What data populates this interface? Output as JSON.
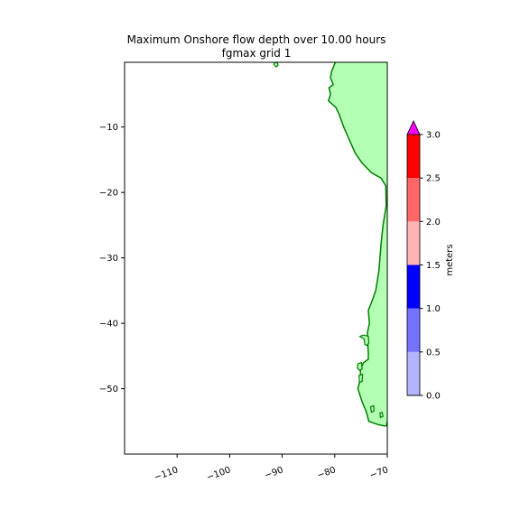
{
  "chart_data": {
    "type": "heatmap",
    "title": "Maximum Onshore flow depth over 10.00 hours",
    "subtitle": "fgmax grid 1",
    "xlabel": "",
    "ylabel": "",
    "xlim": [
      -120,
      -70
    ],
    "ylim": [
      -60,
      -0.1
    ],
    "x_ticks": [
      -110,
      -100,
      -90,
      -80,
      -70
    ],
    "y_ticks": [
      -10,
      -20,
      -30,
      -40,
      -50
    ],
    "x_tick_labels": [
      "−110",
      "−100",
      "−90",
      "−80",
      "−70"
    ],
    "y_tick_labels": [
      "−10",
      "−20",
      "−30",
      "−40",
      "−50"
    ],
    "grid": false,
    "colors": {
      "land": "#b3ffb3",
      "coastline": "#008000"
    },
    "colorbar": {
      "label": "meters",
      "levels": [
        0.0,
        0.5,
        1.0,
        1.5,
        2.0,
        2.5,
        3.0
      ],
      "tick_labels": [
        "0.0",
        "0.5",
        "1.0",
        "1.5",
        "2.0",
        "2.5",
        "3.0"
      ],
      "colors": [
        "#b3b3ff",
        "#7373ff",
        "#0000ff",
        "#ffb3b3",
        "#ff6666",
        "#ff0000"
      ],
      "extend_color": "#ff00ff",
      "extend": "max"
    },
    "coastline": [
      [
        -62.7,
        -0.1
      ],
      [
        -62.7,
        -3.8
      ],
      [
        -62.4,
        -3.8
      ],
      [
        -62.4,
        -9
      ],
      [
        -62.5,
        -20
      ],
      [
        -62.5,
        -30
      ],
      [
        -62.5,
        -40
      ],
      [
        -62.3,
        -40.3
      ],
      [
        -62,
        -40.5
      ],
      [
        -62.4,
        -40.7
      ],
      [
        -63,
        -41
      ],
      [
        -63.1,
        -41.5
      ],
      [
        -62.8,
        -42
      ],
      [
        -63.4,
        -42.3
      ],
      [
        -64.3,
        -42.8
      ],
      [
        -64.7,
        -43.5
      ],
      [
        -65.3,
        -44.5
      ],
      [
        -66.4,
        -45
      ],
      [
        -67.2,
        -46
      ],
      [
        -67.4,
        -47
      ],
      [
        -66.3,
        -48
      ],
      [
        -68.2,
        -49
      ],
      [
        -68.8,
        -50.5
      ],
      [
        -69,
        -51.3
      ],
      [
        -69.3,
        -52
      ],
      [
        -68.5,
        -52.4
      ],
      [
        -68.6,
        -53.5
      ],
      [
        -67.7,
        -54.2
      ],
      [
        -66.7,
        -55
      ],
      [
        -67.8,
        -55.3
      ],
      [
        -69,
        -55.4
      ],
      [
        -70.5,
        -55.7
      ],
      [
        -71.7,
        -55.5
      ],
      [
        -73.5,
        -55
      ],
      [
        -74,
        -53.5
      ],
      [
        -74.8,
        -52
      ],
      [
        -75.6,
        -50
      ],
      [
        -75.1,
        -48.5
      ],
      [
        -75.1,
        -47
      ],
      [
        -74.5,
        -46
      ],
      [
        -73.6,
        -45.5
      ],
      [
        -73.6,
        -44.5
      ],
      [
        -73.7,
        -43.5
      ],
      [
        -73.6,
        -42.5
      ],
      [
        -73.8,
        -41.5
      ],
      [
        -73.4,
        -40
      ],
      [
        -73.6,
        -38
      ],
      [
        -73.1,
        -37
      ],
      [
        -72.2,
        -35
      ],
      [
        -71.6,
        -32
      ],
      [
        -71.4,
        -30
      ],
      [
        -71.2,
        -28
      ],
      [
        -70.8,
        -25
      ],
      [
        -70.2,
        -22
      ],
      [
        -70.3,
        -19
      ],
      [
        -71.2,
        -17.8
      ],
      [
        -73,
        -17
      ],
      [
        -74.8,
        -15.5
      ],
      [
        -76.1,
        -14
      ],
      [
        -77.2,
        -12
      ],
      [
        -78.3,
        -10
      ],
      [
        -79.2,
        -8
      ],
      [
        -79.8,
        -7
      ],
      [
        -81.2,
        -6
      ],
      [
        -80.8,
        -5
      ],
      [
        -81.1,
        -4
      ],
      [
        -80.3,
        -3.5
      ],
      [
        -80.8,
        -2.5
      ],
      [
        -80.6,
        -1.5
      ],
      [
        -79.9,
        -0.1
      ]
    ],
    "islands": [
      [
        [
          -91.4,
          -0.1
        ],
        [
          -91.6,
          -0.4
        ],
        [
          -91.2,
          -0.8
        ],
        [
          -90.8,
          -0.6
        ],
        [
          -90.9,
          -0.2
        ]
      ],
      [
        [
          -75.2,
          -42
        ],
        [
          -74.5,
          -41.8
        ],
        [
          -73.6,
          -42
        ],
        [
          -73.5,
          -43
        ],
        [
          -73.9,
          -43.4
        ],
        [
          -74.3,
          -43.2
        ],
        [
          -74.4,
          -42.4
        ]
      ],
      [
        [
          -75.6,
          -46.2
        ],
        [
          -74.9,
          -46
        ],
        [
          -74.8,
          -47
        ],
        [
          -75.3,
          -47.2
        ],
        [
          -75.7,
          -46.8
        ]
      ],
      [
        [
          -75.4,
          -48
        ],
        [
          -74.7,
          -47.8
        ],
        [
          -74.8,
          -48.9
        ],
        [
          -75.3,
          -49
        ]
      ],
      [
        [
          -73.2,
          -52.8
        ],
        [
          -72.6,
          -52.6
        ],
        [
          -72.5,
          -53.4
        ],
        [
          -73,
          -53.6
        ]
      ],
      [
        [
          -71.4,
          -53.7
        ],
        [
          -71,
          -53.6
        ],
        [
          -70.8,
          -54.2
        ],
        [
          -71.3,
          -54.4
        ]
      ],
      [
        [
          -68.2,
          -55.1
        ],
        [
          -67.3,
          -55.2
        ],
        [
          -67.7,
          -55.6
        ],
        [
          -68.4,
          -55.5
        ]
      ],
      [
        [
          -70.1,
          -55.2
        ],
        [
          -69.5,
          -55.1
        ],
        [
          -69.4,
          -55.6
        ],
        [
          -70.1,
          -55.7
        ]
      ],
      [
        [
          -62,
          -51.3
        ],
        [
          -61.3,
          -51.2
        ],
        [
          -61.2,
          -51.8
        ],
        [
          -61.9,
          -51.9
        ]
      ]
    ]
  }
}
